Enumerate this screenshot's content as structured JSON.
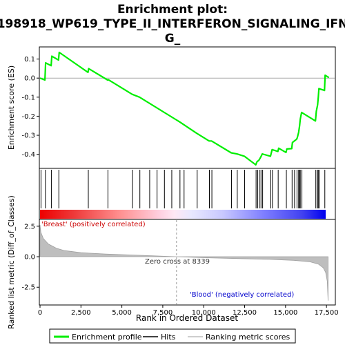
{
  "chart_data": {
    "type": "line",
    "title_line1": "Enrichment plot:",
    "title_line2": "198918_WP619_TYPE_II_INTERFERON_SIGNALING_IFN",
    "title_line3": "G_",
    "xlabel": "Rank in Ordered Dataset",
    "ylabel_top": "Enrichment score (ES)",
    "ylabel_bottom": "Ranked list metric (Diff_of_Classes)",
    "xlim": [
      0,
      18000
    ],
    "es_ylim": [
      -0.47,
      0.16
    ],
    "metric_ylim": [
      -3.9,
      3.0
    ],
    "x_ticks": [
      0,
      2500,
      5000,
      7500,
      10000,
      12500,
      15000,
      17500
    ],
    "x_tick_labels": [
      "0",
      "2,500",
      "5,000",
      "7,500",
      "10,000",
      "12,500",
      "15,000",
      "17,500"
    ],
    "es_ticks": [
      0.1,
      0.0,
      -0.1,
      -0.2,
      -0.3,
      -0.4
    ],
    "es_tick_labels": [
      "0.1",
      "0.0",
      "-0.1",
      "-0.2",
      "-0.3",
      "-0.4"
    ],
    "metric_ticks": [
      2.5,
      0.0,
      -2.5
    ],
    "metric_tick_labels": [
      "2.5",
      "0.0",
      "-2.5"
    ],
    "label_positive": "'Breast' (positively correlated)",
    "label_negative": "'Blood' (negatively correlated)",
    "zero_cross_label": "Zero cross at 8339",
    "zero_cross": 8339,
    "n_genes": 17600,
    "hits": [
      60,
      330,
      700,
      1150,
      2950,
      4150,
      5650,
      6100,
      6700,
      7150,
      7600,
      8050,
      8550,
      8800,
      9600,
      10350,
      10500,
      11700,
      12050,
      12500,
      13200,
      13300,
      13400,
      13500,
      13600,
      14100,
      14200,
      14550,
      15050,
      15400,
      15550,
      15700,
      15800,
      15850,
      15900,
      16000,
      16850,
      16950,
      17000,
      17050,
      17400
    ],
    "es_curve": [
      [
        0,
        0.0
      ],
      [
        300,
        -0.01
      ],
      [
        340,
        0.08
      ],
      [
        680,
        0.065
      ],
      [
        720,
        0.115
      ],
      [
        1130,
        0.095
      ],
      [
        1170,
        0.135
      ],
      [
        2930,
        0.03
      ],
      [
        2970,
        0.05
      ],
      [
        4130,
        -0.01
      ],
      [
        4170,
        -0.008
      ],
      [
        5630,
        -0.085
      ],
      [
        6080,
        -0.1
      ],
      [
        8530,
        -0.23
      ],
      [
        9580,
        -0.29
      ],
      [
        10330,
        -0.33
      ],
      [
        10480,
        -0.33
      ],
      [
        11680,
        -0.392
      ],
      [
        12030,
        -0.398
      ],
      [
        12480,
        -0.41
      ],
      [
        13180,
        -0.455
      ],
      [
        13250,
        -0.44
      ],
      [
        13380,
        -0.43
      ],
      [
        13480,
        -0.415
      ],
      [
        13580,
        -0.398
      ],
      [
        14080,
        -0.41
      ],
      [
        14180,
        -0.375
      ],
      [
        14530,
        -0.385
      ],
      [
        14580,
        -0.368
      ],
      [
        15030,
        -0.39
      ],
      [
        15080,
        -0.372
      ],
      [
        15380,
        -0.37
      ],
      [
        15420,
        -0.338
      ],
      [
        15680,
        -0.32
      ],
      [
        15720,
        -0.312
      ],
      [
        15800,
        -0.285
      ],
      [
        15860,
        -0.25
      ],
      [
        15900,
        -0.215
      ],
      [
        15980,
        -0.18
      ],
      [
        16830,
        -0.225
      ],
      [
        16880,
        -0.175
      ],
      [
        16960,
        -0.14
      ],
      [
        17000,
        -0.1
      ],
      [
        17040,
        -0.055
      ],
      [
        17380,
        -0.065
      ],
      [
        17420,
        0.015
      ],
      [
        17650,
        0.003
      ]
    ],
    "metric_curve": [
      [
        0,
        2.6
      ],
      [
        50,
        2.0
      ],
      [
        200,
        1.5
      ],
      [
        500,
        1.05
      ],
      [
        1000,
        0.7
      ],
      [
        1500,
        0.5
      ],
      [
        2500,
        0.33
      ],
      [
        4000,
        0.22
      ],
      [
        6000,
        0.12
      ],
      [
        8339,
        0.0
      ],
      [
        10000,
        -0.08
      ],
      [
        12000,
        -0.15
      ],
      [
        14000,
        -0.22
      ],
      [
        15500,
        -0.3
      ],
      [
        16500,
        -0.42
      ],
      [
        17000,
        -0.6
      ],
      [
        17300,
        -0.9
      ],
      [
        17450,
        -1.3
      ],
      [
        17550,
        -2.0
      ],
      [
        17600,
        -3.6
      ]
    ],
    "legend": [
      "Enrichment profile",
      "Hits",
      "Ranking metric scores"
    ],
    "colors": {
      "es_line": "#00ee00",
      "hit": "#000000",
      "metric_fill": "#bebebe",
      "zero_line": "#999999",
      "positive_text": "#cc0000",
      "negative_text": "#0000cc",
      "bar_red": "#ee0000",
      "bar_white": "#ffffff",
      "bar_blue": "#0000ee"
    }
  }
}
